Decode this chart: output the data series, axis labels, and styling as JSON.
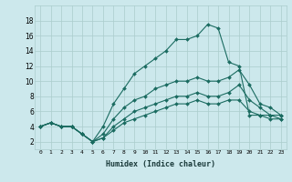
{
  "xlabel": "Humidex (Indice chaleur)",
  "background_color": "#cce8ec",
  "grid_color": "#aacccc",
  "line_color": "#1a6b60",
  "xlim": [
    -0.5,
    23.5
  ],
  "ylim": [
    1,
    20
  ],
  "xticks": [
    0,
    1,
    2,
    3,
    4,
    5,
    6,
    7,
    8,
    9,
    10,
    11,
    12,
    13,
    14,
    15,
    16,
    17,
    18,
    19,
    20,
    21,
    22,
    23
  ],
  "yticks": [
    2,
    4,
    6,
    8,
    10,
    12,
    14,
    16,
    18
  ],
  "series": [
    {
      "x": [
        0,
        1,
        2,
        3,
        4,
        5,
        6,
        7,
        8,
        9,
        10,
        11,
        12,
        13,
        14,
        15,
        16,
        17,
        18,
        19,
        20,
        21,
        22,
        23
      ],
      "y": [
        4,
        4.5,
        4,
        4,
        3,
        2,
        4,
        7,
        9,
        11,
        12,
        13,
        14,
        15.5,
        15.5,
        16,
        17.5,
        17,
        12.5,
        12,
        5.5,
        5.5,
        5.5,
        5.5
      ]
    },
    {
      "x": [
        0,
        1,
        2,
        3,
        4,
        5,
        6,
        7,
        8,
        9,
        10,
        11,
        12,
        13,
        14,
        15,
        16,
        17,
        18,
        19,
        20,
        21,
        22,
        23
      ],
      "y": [
        4,
        4.5,
        4,
        4,
        3,
        2,
        3,
        5,
        6.5,
        7.5,
        8,
        9,
        9.5,
        10,
        10,
        10.5,
        10,
        10,
        10.5,
        11.5,
        9.5,
        7,
        6.5,
        5.5
      ]
    },
    {
      "x": [
        0,
        1,
        2,
        3,
        4,
        5,
        6,
        7,
        8,
        9,
        10,
        11,
        12,
        13,
        14,
        15,
        16,
        17,
        18,
        19,
        20,
        21,
        22,
        23
      ],
      "y": [
        4,
        4.5,
        4,
        4,
        3,
        2,
        2.5,
        4,
        5,
        6,
        6.5,
        7,
        7.5,
        8,
        8,
        8.5,
        8,
        8,
        8.5,
        9.5,
        7.5,
        6.5,
        5.5,
        5
      ]
    },
    {
      "x": [
        0,
        1,
        2,
        3,
        4,
        5,
        6,
        7,
        8,
        9,
        10,
        11,
        12,
        13,
        14,
        15,
        16,
        17,
        18,
        19,
        20,
        21,
        22,
        23
      ],
      "y": [
        4,
        4.5,
        4,
        4,
        3,
        2,
        2.5,
        3.5,
        4.5,
        5,
        5.5,
        6,
        6.5,
        7,
        7,
        7.5,
        7,
        7,
        7.5,
        7.5,
        6,
        5.5,
        5,
        5
      ]
    }
  ]
}
